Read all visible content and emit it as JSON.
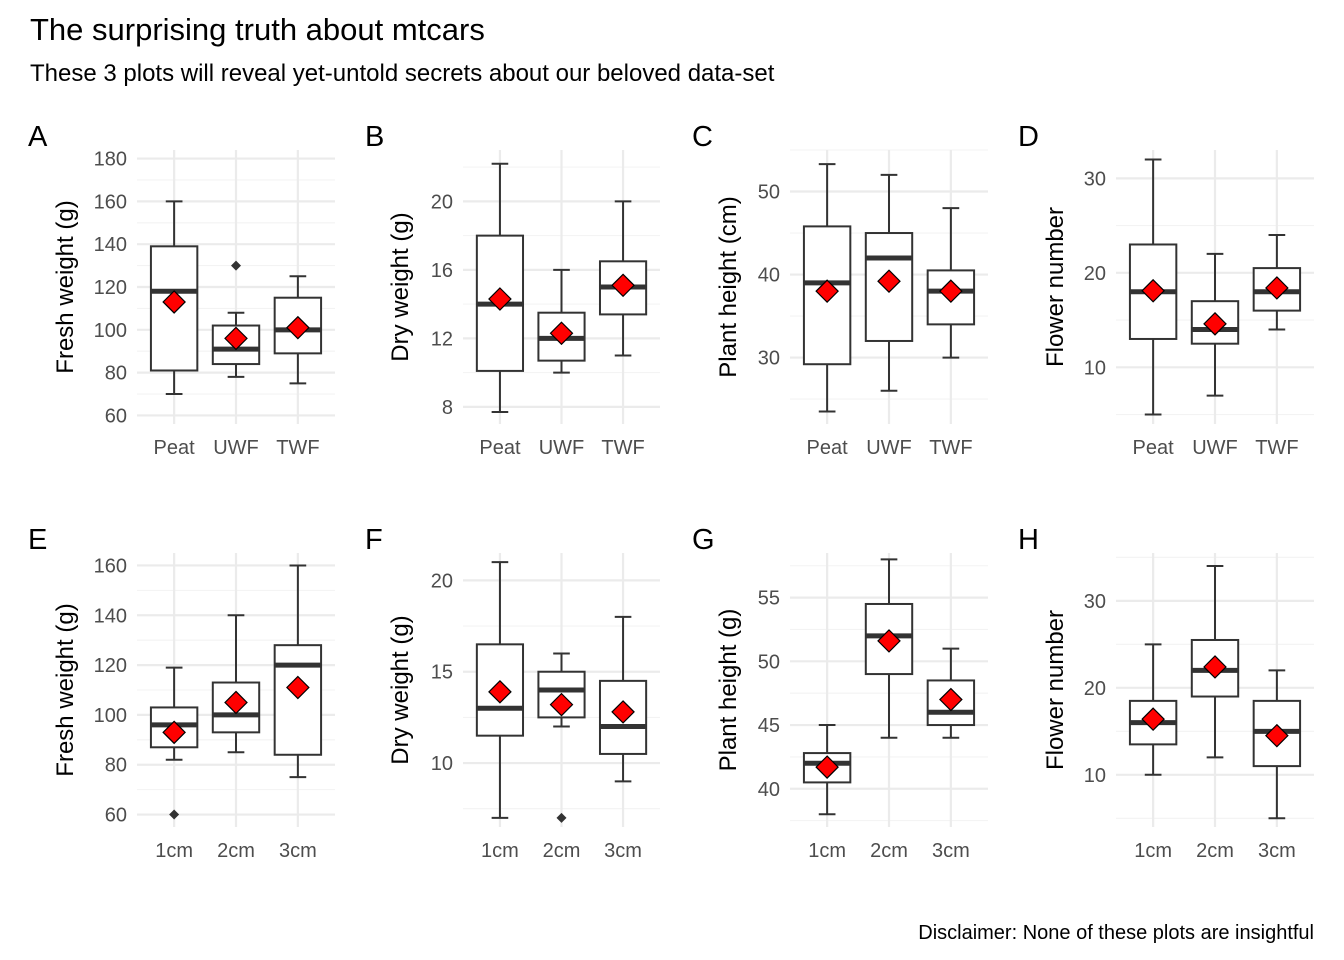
{
  "title": "The surprising truth about mtcars",
  "subtitle": "These 3 plots will reveal yet-untold secrets about our beloved data-set",
  "caption": "Disclaimer: None of these plots are insightful",
  "colors": {
    "mean_point": "#ff0000",
    "box_line": "#333333",
    "grid": "#ebebeb"
  },
  "chart_data": [
    {
      "type": "boxplot",
      "tag": "A",
      "ylabel": "Fresh weight (g)",
      "categories": [
        "Peat",
        "UWF",
        "TWF"
      ],
      "ylim": [
        56,
        184
      ],
      "yticks": [
        60,
        80,
        100,
        120,
        140,
        160,
        180
      ],
      "boxes": [
        {
          "min": 70,
          "q1": 81,
          "median": 118,
          "q3": 139,
          "max": 160,
          "mean": 113,
          "outliers": []
        },
        {
          "min": 78,
          "q1": 84,
          "median": 91,
          "q3": 102,
          "max": 108,
          "mean": 96,
          "outliers": [
            130
          ]
        },
        {
          "min": 75,
          "q1": 89,
          "median": 100,
          "q3": 115,
          "max": 125,
          "mean": 101,
          "outliers": []
        }
      ]
    },
    {
      "type": "boxplot",
      "tag": "B",
      "ylabel": "Dry weight (g)",
      "categories": [
        "Peat",
        "UWF",
        "TWF"
      ],
      "ylim": [
        7,
        23
      ],
      "yticks": [
        8,
        12,
        16,
        20
      ],
      "boxes": [
        {
          "min": 7.7,
          "q1": 10.1,
          "median": 14,
          "q3": 18,
          "max": 22.2,
          "mean": 14.3,
          "outliers": []
        },
        {
          "min": 10,
          "q1": 10.7,
          "median": 12,
          "q3": 13.5,
          "max": 16,
          "mean": 12.3,
          "outliers": []
        },
        {
          "min": 11,
          "q1": 13.4,
          "median": 15,
          "q3": 16.5,
          "max": 20,
          "mean": 15.1,
          "outliers": []
        }
      ]
    },
    {
      "type": "boxplot",
      "tag": "C",
      "ylabel": "Plant height (cm)",
      "categories": [
        "Peat",
        "UWF",
        "TWF"
      ],
      "ylim": [
        22,
        55
      ],
      "yticks": [
        30,
        40,
        50
      ],
      "boxes": [
        {
          "min": 23.5,
          "q1": 29.2,
          "median": 39,
          "q3": 45.8,
          "max": 53.3,
          "mean": 38,
          "outliers": []
        },
        {
          "min": 26,
          "q1": 32,
          "median": 42,
          "q3": 45,
          "max": 52,
          "mean": 39.2,
          "outliers": []
        },
        {
          "min": 30,
          "q1": 34,
          "median": 38,
          "q3": 40.5,
          "max": 48,
          "mean": 38,
          "outliers": []
        }
      ]
    },
    {
      "type": "boxplot",
      "tag": "D",
      "ylabel": "Flower number",
      "categories": [
        "Peat",
        "UWF",
        "TWF"
      ],
      "ylim": [
        4,
        33
      ],
      "yticks": [
        10,
        20,
        30
      ],
      "boxes": [
        {
          "min": 5,
          "q1": 13,
          "median": 18,
          "q3": 23,
          "max": 32,
          "mean": 18.1,
          "outliers": []
        },
        {
          "min": 7,
          "q1": 12.5,
          "median": 14,
          "q3": 17,
          "max": 22,
          "mean": 14.6,
          "outliers": []
        },
        {
          "min": 14,
          "q1": 16,
          "median": 18,
          "q3": 20.5,
          "max": 24,
          "mean": 18.4,
          "outliers": []
        }
      ]
    },
    {
      "type": "boxplot",
      "tag": "E",
      "ylabel": "Fresh weight (g)",
      "categories": [
        "1cm",
        "2cm",
        "3cm"
      ],
      "ylim": [
        55,
        165
      ],
      "yticks": [
        60,
        80,
        100,
        120,
        140,
        160
      ],
      "boxes": [
        {
          "min": 82,
          "q1": 87,
          "median": 96,
          "q3": 103,
          "max": 119,
          "mean": 93,
          "outliers": [
            60
          ]
        },
        {
          "min": 85,
          "q1": 93,
          "median": 100,
          "q3": 113,
          "max": 140,
          "mean": 105,
          "outliers": []
        },
        {
          "min": 75,
          "q1": 84,
          "median": 120,
          "q3": 128,
          "max": 160,
          "mean": 111,
          "outliers": []
        }
      ]
    },
    {
      "type": "boxplot",
      "tag": "F",
      "ylabel": "Dry weight (g)",
      "categories": [
        "1cm",
        "2cm",
        "3cm"
      ],
      "ylim": [
        6.5,
        21.5
      ],
      "yticks": [
        10,
        15,
        20
      ],
      "boxes": [
        {
          "min": 7,
          "q1": 11.5,
          "median": 13,
          "q3": 16.5,
          "max": 21,
          "mean": 13.9,
          "outliers": []
        },
        {
          "min": 12,
          "q1": 12.5,
          "median": 14,
          "q3": 15,
          "max": 16,
          "mean": 13.2,
          "outliers": [
            7
          ]
        },
        {
          "min": 9,
          "q1": 10.5,
          "median": 12,
          "q3": 14.5,
          "max": 18,
          "mean": 12.8,
          "outliers": []
        }
      ]
    },
    {
      "type": "boxplot",
      "tag": "G",
      "ylabel": "Plant height (g)",
      "categories": [
        "1cm",
        "2cm",
        "3cm"
      ],
      "ylim": [
        37,
        58.5
      ],
      "yticks": [
        40,
        45,
        50,
        55
      ],
      "boxes": [
        {
          "min": 38,
          "q1": 40.5,
          "median": 42,
          "q3": 42.8,
          "max": 45,
          "mean": 41.7,
          "outliers": []
        },
        {
          "min": 44,
          "q1": 49,
          "median": 52,
          "q3": 54.5,
          "max": 58,
          "mean": 51.6,
          "outliers": []
        },
        {
          "min": 44,
          "q1": 45,
          "median": 46,
          "q3": 48.5,
          "max": 51,
          "mean": 47,
          "outliers": []
        }
      ]
    },
    {
      "type": "boxplot",
      "tag": "H",
      "ylabel": "Flower number",
      "categories": [
        "1cm",
        "2cm",
        "3cm"
      ],
      "ylim": [
        4,
        35.5
      ],
      "yticks": [
        10,
        20,
        30
      ],
      "boxes": [
        {
          "min": 10,
          "q1": 13.5,
          "median": 16,
          "q3": 18.5,
          "max": 25,
          "mean": 16.4,
          "outliers": []
        },
        {
          "min": 12,
          "q1": 19,
          "median": 22,
          "q3": 25.5,
          "max": 34,
          "mean": 22.4,
          "outliers": []
        },
        {
          "min": 5,
          "q1": 11,
          "median": 15,
          "q3": 18.5,
          "max": 22,
          "mean": 14.5,
          "outliers": []
        }
      ]
    }
  ]
}
